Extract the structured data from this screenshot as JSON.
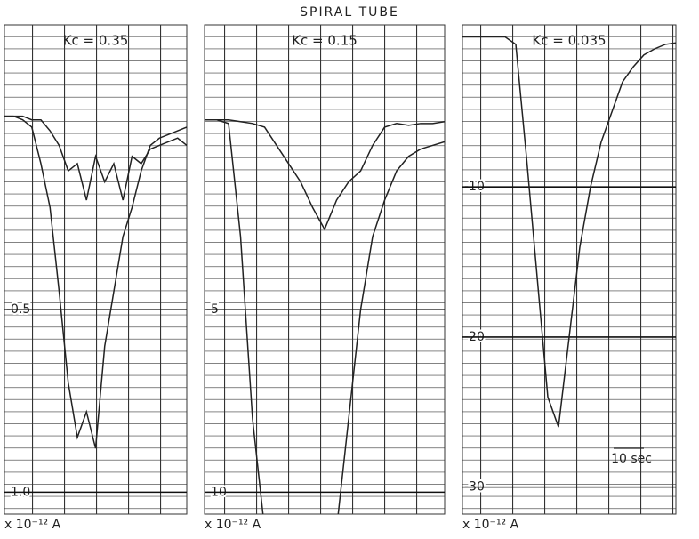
{
  "title": "SPIRAL TUBE",
  "chart_data": [
    {
      "type": "line",
      "annotation": "Kc = 0.35",
      "y_unit": "x 10⁻¹² A",
      "ylim": [
        -1.06,
        0.28
      ],
      "yticks": [
        -0.5,
        {
          "value": -1,
          "label": "-1.0"
        }
      ],
      "series": [
        {
          "color": "#222222",
          "values": [
            0.03,
            0.03,
            0.03,
            0.02,
            0.02,
            -0.01,
            -0.05,
            -0.12,
            -0.1,
            -0.2,
            -0.08,
            -0.15,
            -0.1,
            -0.2,
            -0.08,
            -0.1,
            -0.06,
            -0.05,
            -0.04,
            -0.03,
            -0.05
          ]
        },
        {
          "color": "#222222",
          "values": [
            0.03,
            0.03,
            0.02,
            0,
            -0.1,
            -0.22,
            -0.45,
            -0.7,
            -0.85,
            -0.78,
            -0.88,
            -0.6,
            -0.45,
            -0.3,
            -0.22,
            -0.12,
            -0.05,
            -0.03,
            -0.02,
            -0.01,
            0
          ]
        }
      ]
    },
    {
      "type": "line",
      "annotation": "Kc = 0.15",
      "y_unit": "x 10⁻¹² A",
      "ylim": [
        -10.6,
        2.8
      ],
      "yticks": [
        -5,
        -10
      ],
      "series": [
        {
          "color": "#222222",
          "values": [
            0.2,
            0.2,
            0.2,
            0.15,
            0.1,
            0,
            -0.5,
            -1,
            -1.5,
            -2.2,
            -2.8,
            -2,
            -1.5,
            -1.2,
            -0.5,
            0,
            0.1,
            0.05,
            0.1,
            0.1,
            0.15
          ]
        },
        {
          "color": "#222222",
          "values": [
            0.2,
            0.2,
            0.1,
            -3,
            -8,
            -11,
            -11,
            -11,
            -11,
            -11,
            -11,
            -11,
            -8,
            -5,
            -3,
            -2,
            -1.2,
            -0.8,
            -0.6,
            -0.5,
            -0.4
          ]
        }
      ]
    },
    {
      "type": "line",
      "annotation": "Kc = 0.035",
      "y_unit": "x 10⁻¹² A",
      "scale_note": "10 sec",
      "ylim": [
        -31.8,
        0.8
      ],
      "yticks": [
        -10,
        -20,
        -30
      ],
      "series": [
        {
          "color": "#222222",
          "values": [
            0,
            0,
            0,
            0,
            0,
            -0.5,
            -8,
            -16,
            -24,
            -26,
            -20,
            -14,
            -10,
            -7,
            -5,
            -3,
            -2,
            -1.2,
            -0.8,
            -0.5,
            -0.4
          ]
        }
      ]
    }
  ]
}
